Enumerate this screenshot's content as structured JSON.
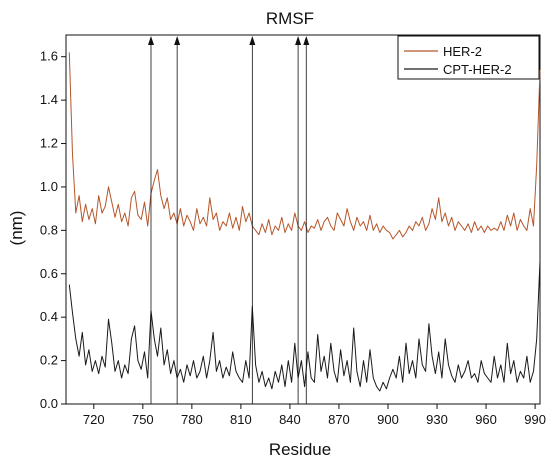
{
  "chart_data": {
    "type": "line",
    "title": "RMSF",
    "xlabel": "Residue",
    "ylabel": "(nm)",
    "xlim": [
      703,
      993
    ],
    "ylim": [
      0,
      1.7
    ],
    "xticks": [
      720,
      750,
      780,
      810,
      840,
      870,
      900,
      930,
      960,
      990
    ],
    "yticks": [
      0.0,
      0.2,
      0.4,
      0.6,
      0.8,
      1.0,
      1.2,
      1.4,
      1.6
    ],
    "grid": false,
    "legend_position": "top-right",
    "arrows_at_residue": [
      755,
      771,
      817,
      845,
      850
    ],
    "series": [
      {
        "name": "HER-2",
        "color": "#b5552a",
        "x": [
          705,
          707,
          709,
          711,
          713,
          715,
          717,
          719,
          721,
          723,
          725,
          727,
          729,
          731,
          733,
          735,
          737,
          739,
          741,
          743,
          745,
          747,
          749,
          751,
          753,
          755,
          757,
          759,
          761,
          763,
          765,
          767,
          769,
          771,
          773,
          775,
          777,
          779,
          781,
          783,
          785,
          787,
          789,
          791,
          793,
          795,
          797,
          799,
          801,
          803,
          805,
          807,
          809,
          811,
          813,
          815,
          817,
          819,
          821,
          823,
          825,
          827,
          829,
          831,
          833,
          835,
          837,
          839,
          841,
          843,
          845,
          847,
          849,
          851,
          853,
          855,
          857,
          859,
          861,
          863,
          865,
          867,
          869,
          871,
          873,
          875,
          877,
          879,
          881,
          883,
          885,
          887,
          889,
          891,
          893,
          895,
          897,
          899,
          901,
          903,
          905,
          907,
          909,
          911,
          913,
          915,
          917,
          919,
          921,
          923,
          925,
          927,
          929,
          931,
          933,
          935,
          937,
          939,
          941,
          943,
          945,
          947,
          949,
          951,
          953,
          955,
          957,
          959,
          961,
          963,
          965,
          967,
          969,
          971,
          973,
          975,
          977,
          979,
          981,
          983,
          985,
          987,
          989,
          991,
          993
        ],
        "y": [
          1.62,
          1.15,
          0.88,
          0.96,
          0.84,
          0.92,
          0.85,
          0.9,
          0.83,
          0.96,
          0.88,
          0.91,
          1.0,
          0.93,
          0.86,
          0.92,
          0.84,
          0.88,
          0.82,
          0.95,
          0.98,
          0.87,
          0.85,
          0.93,
          0.82,
          0.97,
          1.03,
          1.08,
          0.96,
          0.9,
          0.95,
          0.85,
          0.88,
          0.83,
          0.9,
          0.82,
          0.87,
          0.84,
          0.8,
          0.9,
          0.83,
          0.86,
          0.82,
          0.95,
          0.85,
          0.88,
          0.8,
          0.84,
          0.82,
          0.88,
          0.81,
          0.86,
          0.8,
          0.91,
          0.84,
          0.88,
          0.82,
          0.8,
          0.78,
          0.83,
          0.79,
          0.85,
          0.78,
          0.82,
          0.8,
          0.86,
          0.79,
          0.83,
          0.8,
          0.88,
          0.82,
          0.8,
          0.84,
          0.79,
          0.82,
          0.81,
          0.85,
          0.8,
          0.84,
          0.86,
          0.82,
          0.8,
          0.88,
          0.85,
          0.82,
          0.9,
          0.84,
          0.8,
          0.86,
          0.82,
          0.84,
          0.8,
          0.87,
          0.8,
          0.83,
          0.79,
          0.82,
          0.8,
          0.79,
          0.76,
          0.78,
          0.8,
          0.77,
          0.79,
          0.82,
          0.8,
          0.84,
          0.82,
          0.86,
          0.8,
          0.83,
          0.9,
          0.85,
          0.95,
          0.84,
          0.88,
          0.82,
          0.86,
          0.8,
          0.84,
          0.82,
          0.8,
          0.83,
          0.79,
          0.84,
          0.8,
          0.82,
          0.79,
          0.82,
          0.8,
          0.81,
          0.8,
          0.84,
          0.8,
          0.87,
          0.82,
          0.88,
          0.8,
          0.85,
          0.82,
          0.8,
          0.9,
          0.82,
          1.1,
          1.54
        ]
      },
      {
        "name": "CPT-HER-2",
        "color": "#1a1a1a",
        "x": [
          705,
          707,
          709,
          711,
          713,
          715,
          717,
          719,
          721,
          723,
          725,
          727,
          729,
          731,
          733,
          735,
          737,
          739,
          741,
          743,
          745,
          747,
          749,
          751,
          753,
          755,
          757,
          759,
          761,
          763,
          765,
          767,
          769,
          771,
          773,
          775,
          777,
          779,
          781,
          783,
          785,
          787,
          789,
          791,
          793,
          795,
          797,
          799,
          801,
          803,
          805,
          807,
          809,
          811,
          813,
          815,
          817,
          819,
          821,
          823,
          825,
          827,
          829,
          831,
          833,
          835,
          837,
          839,
          841,
          843,
          845,
          847,
          849,
          851,
          853,
          855,
          857,
          859,
          861,
          863,
          865,
          867,
          869,
          871,
          873,
          875,
          877,
          879,
          881,
          883,
          885,
          887,
          889,
          891,
          893,
          895,
          897,
          899,
          901,
          903,
          905,
          907,
          909,
          911,
          913,
          915,
          917,
          919,
          921,
          923,
          925,
          927,
          929,
          931,
          933,
          935,
          937,
          939,
          941,
          943,
          945,
          947,
          949,
          951,
          953,
          955,
          957,
          959,
          961,
          963,
          965,
          967,
          969,
          971,
          973,
          975,
          977,
          979,
          981,
          983,
          985,
          987,
          989,
          991,
          993
        ],
        "y": [
          0.55,
          0.42,
          0.3,
          0.22,
          0.33,
          0.18,
          0.25,
          0.15,
          0.2,
          0.14,
          0.22,
          0.17,
          0.39,
          0.28,
          0.15,
          0.2,
          0.12,
          0.18,
          0.14,
          0.3,
          0.36,
          0.2,
          0.16,
          0.24,
          0.12,
          0.43,
          0.3,
          0.22,
          0.35,
          0.18,
          0.25,
          0.14,
          0.2,
          0.12,
          0.16,
          0.1,
          0.18,
          0.13,
          0.2,
          0.12,
          0.15,
          0.22,
          0.12,
          0.2,
          0.33,
          0.15,
          0.2,
          0.12,
          0.17,
          0.13,
          0.24,
          0.15,
          0.12,
          0.1,
          0.2,
          0.12,
          0.45,
          0.18,
          0.1,
          0.15,
          0.08,
          0.12,
          0.07,
          0.15,
          0.1,
          0.18,
          0.08,
          0.2,
          0.1,
          0.28,
          0.12,
          0.2,
          0.08,
          0.24,
          0.12,
          0.1,
          0.32,
          0.15,
          0.22,
          0.12,
          0.28,
          0.15,
          0.1,
          0.25,
          0.13,
          0.2,
          0.1,
          0.35,
          0.15,
          0.08,
          0.2,
          0.1,
          0.25,
          0.12,
          0.08,
          0.06,
          0.1,
          0.07,
          0.12,
          0.16,
          0.12,
          0.22,
          0.1,
          0.28,
          0.14,
          0.2,
          0.12,
          0.3,
          0.18,
          0.15,
          0.37,
          0.22,
          0.14,
          0.24,
          0.12,
          0.3,
          0.18,
          0.13,
          0.1,
          0.18,
          0.12,
          0.15,
          0.2,
          0.12,
          0.14,
          0.1,
          0.2,
          0.14,
          0.12,
          0.1,
          0.22,
          0.12,
          0.18,
          0.1,
          0.28,
          0.14,
          0.2,
          0.1,
          0.15,
          0.12,
          0.22,
          0.1,
          0.15,
          0.3,
          0.66
        ]
      }
    ]
  }
}
